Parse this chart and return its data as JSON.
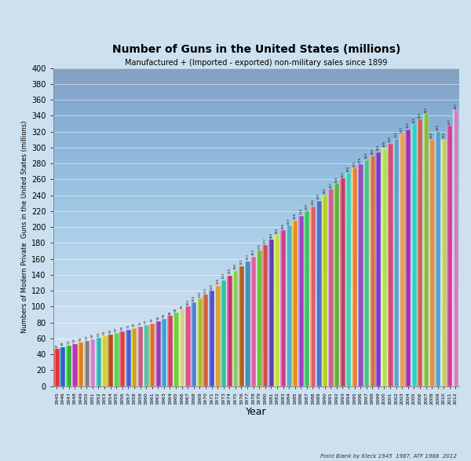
{
  "title": "Number of Guns in the United States (millions)",
  "subtitle": "Manufactured + (Imported - exported) non-military sales since 1899",
  "xlabel": "Year",
  "ylabel": "Numbers of Modern Private  Guns in the United States (millions)",
  "source": "Point Blank by Kleck 1945  1987, ATF 1988  2012",
  "years": [
    1945,
    1946,
    1947,
    1948,
    1949,
    1950,
    1951,
    1952,
    1953,
    1954,
    1955,
    1956,
    1957,
    1958,
    1959,
    1960,
    1961,
    1962,
    1963,
    1964,
    1965,
    1966,
    1967,
    1968,
    1969,
    1970,
    1971,
    1972,
    1973,
    1974,
    1975,
    1976,
    1977,
    1978,
    1979,
    1980,
    1981,
    1982,
    1983,
    1984,
    1985,
    1986,
    1987,
    1988,
    1989,
    1990,
    1991,
    1992,
    1993,
    1994,
    1995,
    1996,
    1997,
    1998,
    1999,
    2000,
    2001,
    2002,
    2003,
    2004,
    2005,
    2006,
    2007,
    2008,
    2009,
    2010,
    2011,
    2012
  ],
  "values": [
    47,
    49,
    51,
    53,
    55,
    57,
    59,
    61,
    63,
    65,
    67,
    69,
    71,
    73,
    75,
    77,
    79,
    82,
    85,
    88,
    92,
    96,
    100,
    105,
    110,
    115,
    120,
    126,
    133,
    139,
    145,
    151,
    157,
    163,
    170,
    177,
    184,
    190,
    196,
    202,
    208,
    214,
    220,
    226,
    233,
    240,
    247,
    254,
    261,
    268,
    274,
    279,
    284,
    289,
    294,
    299,
    305,
    311,
    317,
    323,
    329,
    335,
    342,
    310,
    320,
    310,
    327,
    347
  ],
  "ylim": [
    0,
    400
  ],
  "yticks": [
    0,
    20,
    40,
    60,
    80,
    100,
    120,
    140,
    160,
    180,
    200,
    220,
    240,
    260,
    280,
    300,
    320,
    340,
    360,
    380,
    400
  ],
  "bg_color": "#cce0f0",
  "bar_colors": [
    "#e63232",
    "#3060c0",
    "#30b030",
    "#c030c0",
    "#e08020",
    "#808080",
    "#d080d0",
    "#40b0b0",
    "#d0d040",
    "#b05020",
    "#60d060",
    "#e04040",
    "#4060d0",
    "#d0a020",
    "#c06080",
    "#60c0a0",
    "#e07030",
    "#9040b0",
    "#40a0d0",
    "#d04060",
    "#70d040",
    "#d0d080",
    "#e05090",
    "#5080d0",
    "#a0c030",
    "#d06040",
    "#5050d0",
    "#e0a030",
    "#30c0a0",
    "#d03070",
    "#80d060",
    "#b06020",
    "#4090c0",
    "#e060a0",
    "#70c040",
    "#d05050",
    "#6040b0",
    "#c0e040",
    "#d04080",
    "#50b0d0",
    "#e09020",
    "#a040c0",
    "#40c060",
    "#e06060",
    "#5070d0",
    "#b0d030",
    "#d06090",
    "#60b040",
    "#c04060",
    "#40d0b0",
    "#e08040",
    "#9050c0",
    "#50c080",
    "#d07050",
    "#7040c0",
    "#b0e050",
    "#d05070",
    "#60a0d0",
    "#e0a060",
    "#a030b0",
    "#30d0c0",
    "#d06050",
    "#80c040",
    "#e09050",
    "#50a0d0",
    "#c0d060",
    "#d04090",
    "#d080c0"
  ],
  "bar_width": 0.92,
  "figsize": [
    6.0,
    5.87
  ],
  "dpi": 100
}
